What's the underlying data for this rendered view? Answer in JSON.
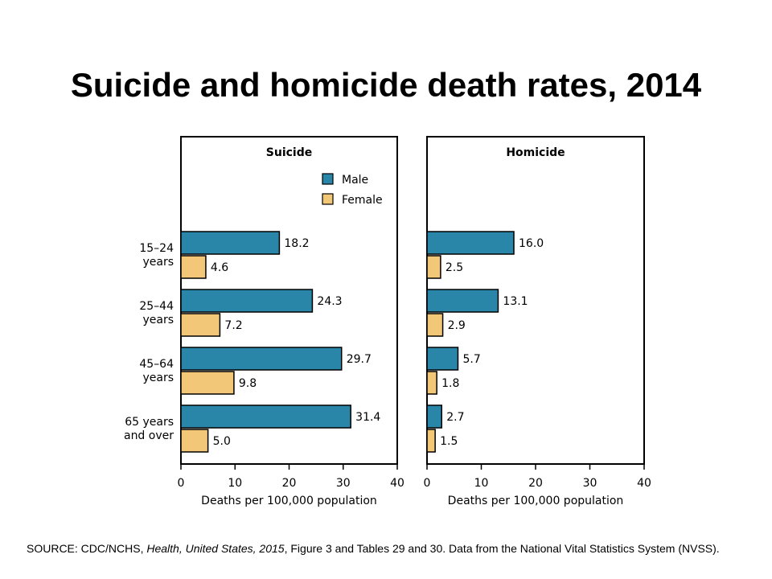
{
  "title": "Suicide and homicide death rates, 2014",
  "source": {
    "prefix": "SOURCE: CDC/NCHS, ",
    "publication": "Health, United States, 2015",
    "suffix": ", Figure 3 and Tables 29 and 30. Data from the National Vital Statistics System (NVSS)."
  },
  "colors": {
    "male": "#2a86a8",
    "female": "#f2c878"
  },
  "chart_data": [
    {
      "type": "bar",
      "orientation": "horizontal",
      "title": "Suicide",
      "categories": [
        [
          "15–24",
          "years"
        ],
        [
          "25–44",
          "years"
        ],
        [
          "45–64",
          "years"
        ],
        [
          "65 years",
          "and over"
        ]
      ],
      "series": [
        {
          "name": "Male",
          "values": [
            18.2,
            24.3,
            29.7,
            31.4
          ],
          "labels": [
            "18.2",
            "24.3",
            "29.7",
            "31.4"
          ]
        },
        {
          "name": "Female",
          "values": [
            4.6,
            7.2,
            9.8,
            5.0
          ],
          "labels": [
            "4.6",
            "7.2",
            "9.8",
            "5.0"
          ]
        }
      ],
      "xlabel": "Deaths per 100,000 population",
      "xlim": [
        0,
        40
      ],
      "xticks": [
        "0",
        "10",
        "20",
        "30",
        "40"
      ],
      "legend": "top-right",
      "grid": false
    },
    {
      "type": "bar",
      "orientation": "horizontal",
      "title": "Homicide",
      "categories": [
        [
          "15–24",
          "years"
        ],
        [
          "25–44",
          "years"
        ],
        [
          "45–64",
          "years"
        ],
        [
          "65 years",
          "and over"
        ]
      ],
      "series": [
        {
          "name": "Male",
          "values": [
            16.0,
            13.1,
            5.7,
            2.7
          ],
          "labels": [
            "16.0",
            "13.1",
            "5.7",
            "2.7"
          ]
        },
        {
          "name": "Female",
          "values": [
            2.5,
            2.9,
            1.8,
            1.5
          ],
          "labels": [
            "2.5",
            "2.9",
            "1.8",
            "1.5"
          ]
        }
      ],
      "xlabel": "Deaths per 100,000 population",
      "xlim": [
        0,
        40
      ],
      "xticks": [
        "0",
        "10",
        "20",
        "30",
        "40"
      ],
      "grid": false
    }
  ]
}
